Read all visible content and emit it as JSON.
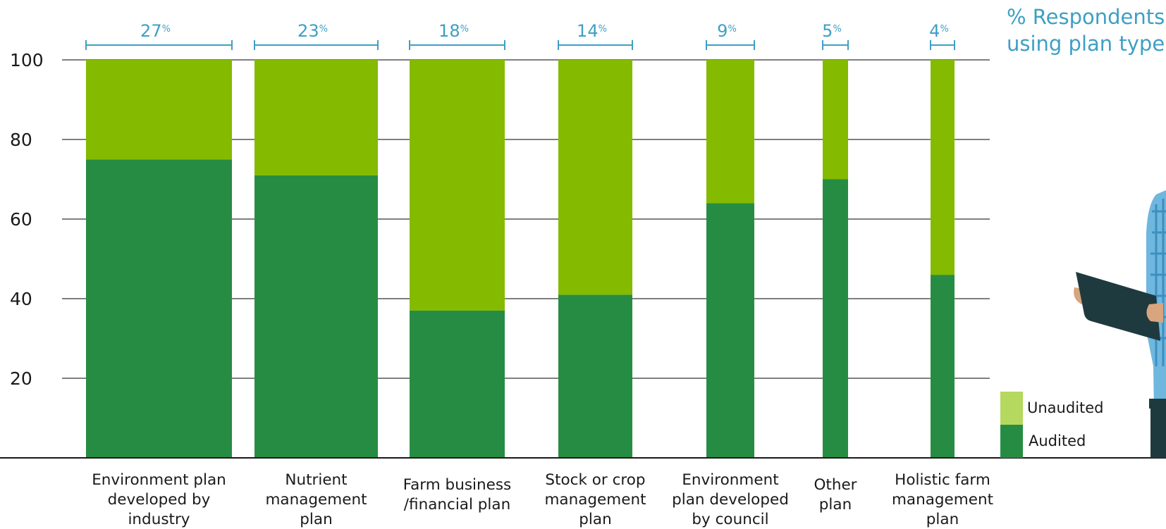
{
  "chart_data": {
    "type": "bar",
    "stacked": true,
    "title_lines": [
      "% Respondents",
      "using plan type"
    ],
    "categories": [
      "Environment plan developed by industry",
      "Nutrient management plan",
      "Farm business /financial plan",
      "Stock or crop management plan",
      "Environment plan developed by council",
      "Other plan",
      "Holistic farm management plan"
    ],
    "category_lines": [
      [
        "Environment plan",
        "developed by",
        "industry"
      ],
      [
        "Nutrient",
        "management",
        "plan"
      ],
      [
        "Farm business",
        "/financial plan"
      ],
      [
        "Stock or crop",
        "management",
        "plan"
      ],
      [
        "Environment",
        "plan developed",
        "by council"
      ],
      [
        "Other",
        "plan"
      ],
      [
        "Holistic farm",
        "management",
        "plan"
      ]
    ],
    "respondent_pct": [
      27,
      23,
      18,
      14,
      9,
      5,
      4
    ],
    "pct_sign": "%",
    "series": [
      {
        "name": "Audited",
        "values": [
          75,
          71,
          37,
          41,
          64,
          70,
          46
        ],
        "color": "#278c43"
      },
      {
        "name": "Unaudited",
        "values": [
          25,
          29,
          63,
          59,
          36,
          30,
          54
        ],
        "color": "#84ba00"
      }
    ],
    "legend_swatch_unaudited": "#b5d85e",
    "y_ticks": [
      20,
      40,
      60,
      80,
      100
    ],
    "ylim": [
      0,
      100
    ],
    "grid": true,
    "legend_position": "right"
  }
}
